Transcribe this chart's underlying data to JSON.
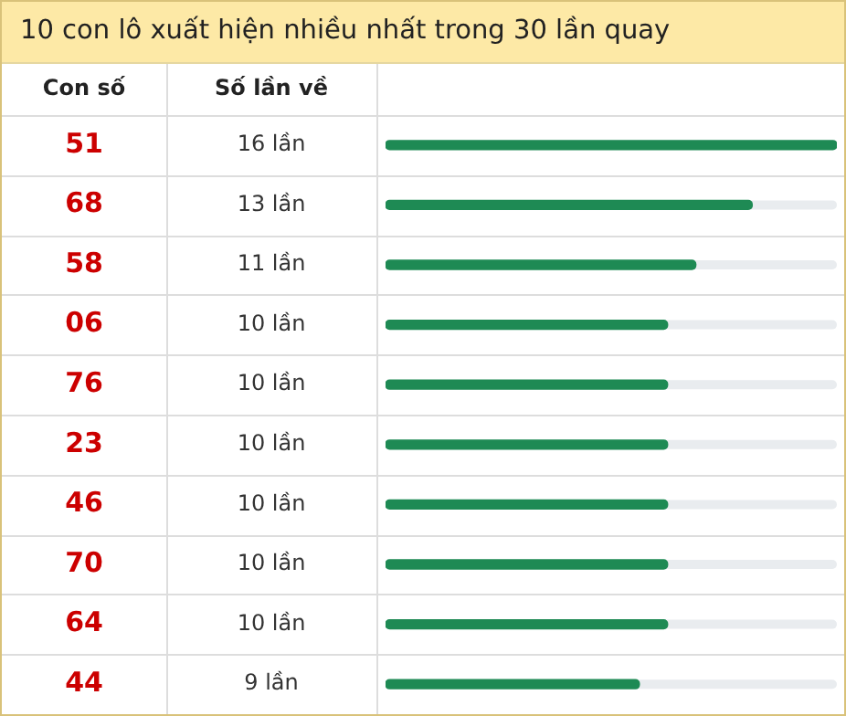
{
  "chart_data": {
    "type": "bar",
    "orientation": "horizontal",
    "title": "10 con lô xuất hiện nhiều nhất trong 30 lần quay",
    "annotations": [
      "Con số",
      "Số lần về"
    ],
    "categories": [
      "51",
      "68",
      "58",
      "06",
      "76",
      "23",
      "46",
      "70",
      "64",
      "44"
    ],
    "values": [
      16,
      13,
      11,
      10,
      10,
      10,
      10,
      10,
      10,
      9
    ],
    "value_labels": [
      "16 lần",
      "13 lần",
      "11 lần",
      "10 lần",
      "10 lần",
      "10 lần",
      "10 lần",
      "10 lần",
      "10 lần",
      "9 lần"
    ],
    "color": "#1e8a54",
    "xlim": [
      0,
      16
    ],
    "tick_labels": "y",
    "legend": false
  }
}
